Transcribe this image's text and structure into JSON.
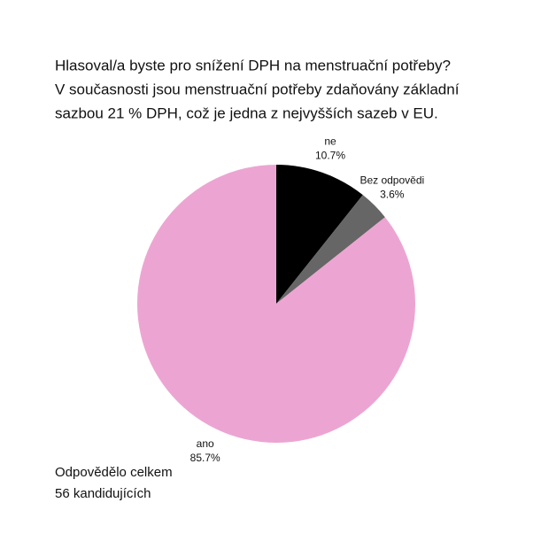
{
  "chart_data": {
    "type": "pie",
    "title": [
      "Hlasoval/a byste pro snížení DPH na menstruační potřeby?",
      "V současnosti jsou menstruační potřeby zdaňovány základní",
      "sazbou 21 % DPH, což je jedna z nejvyšších sazeb v EU."
    ],
    "categories": [
      "ne",
      "Bez odpovědi",
      "ano"
    ],
    "values": [
      10.7,
      3.6,
      85.7
    ],
    "value_labels": [
      "10.7%",
      "3.6%",
      "85.7%"
    ],
    "colors": [
      "#000000",
      "#666666",
      "#eca5d2"
    ],
    "annotation": [
      "Odpovědělo celkem",
      "56 kandidujících"
    ]
  }
}
